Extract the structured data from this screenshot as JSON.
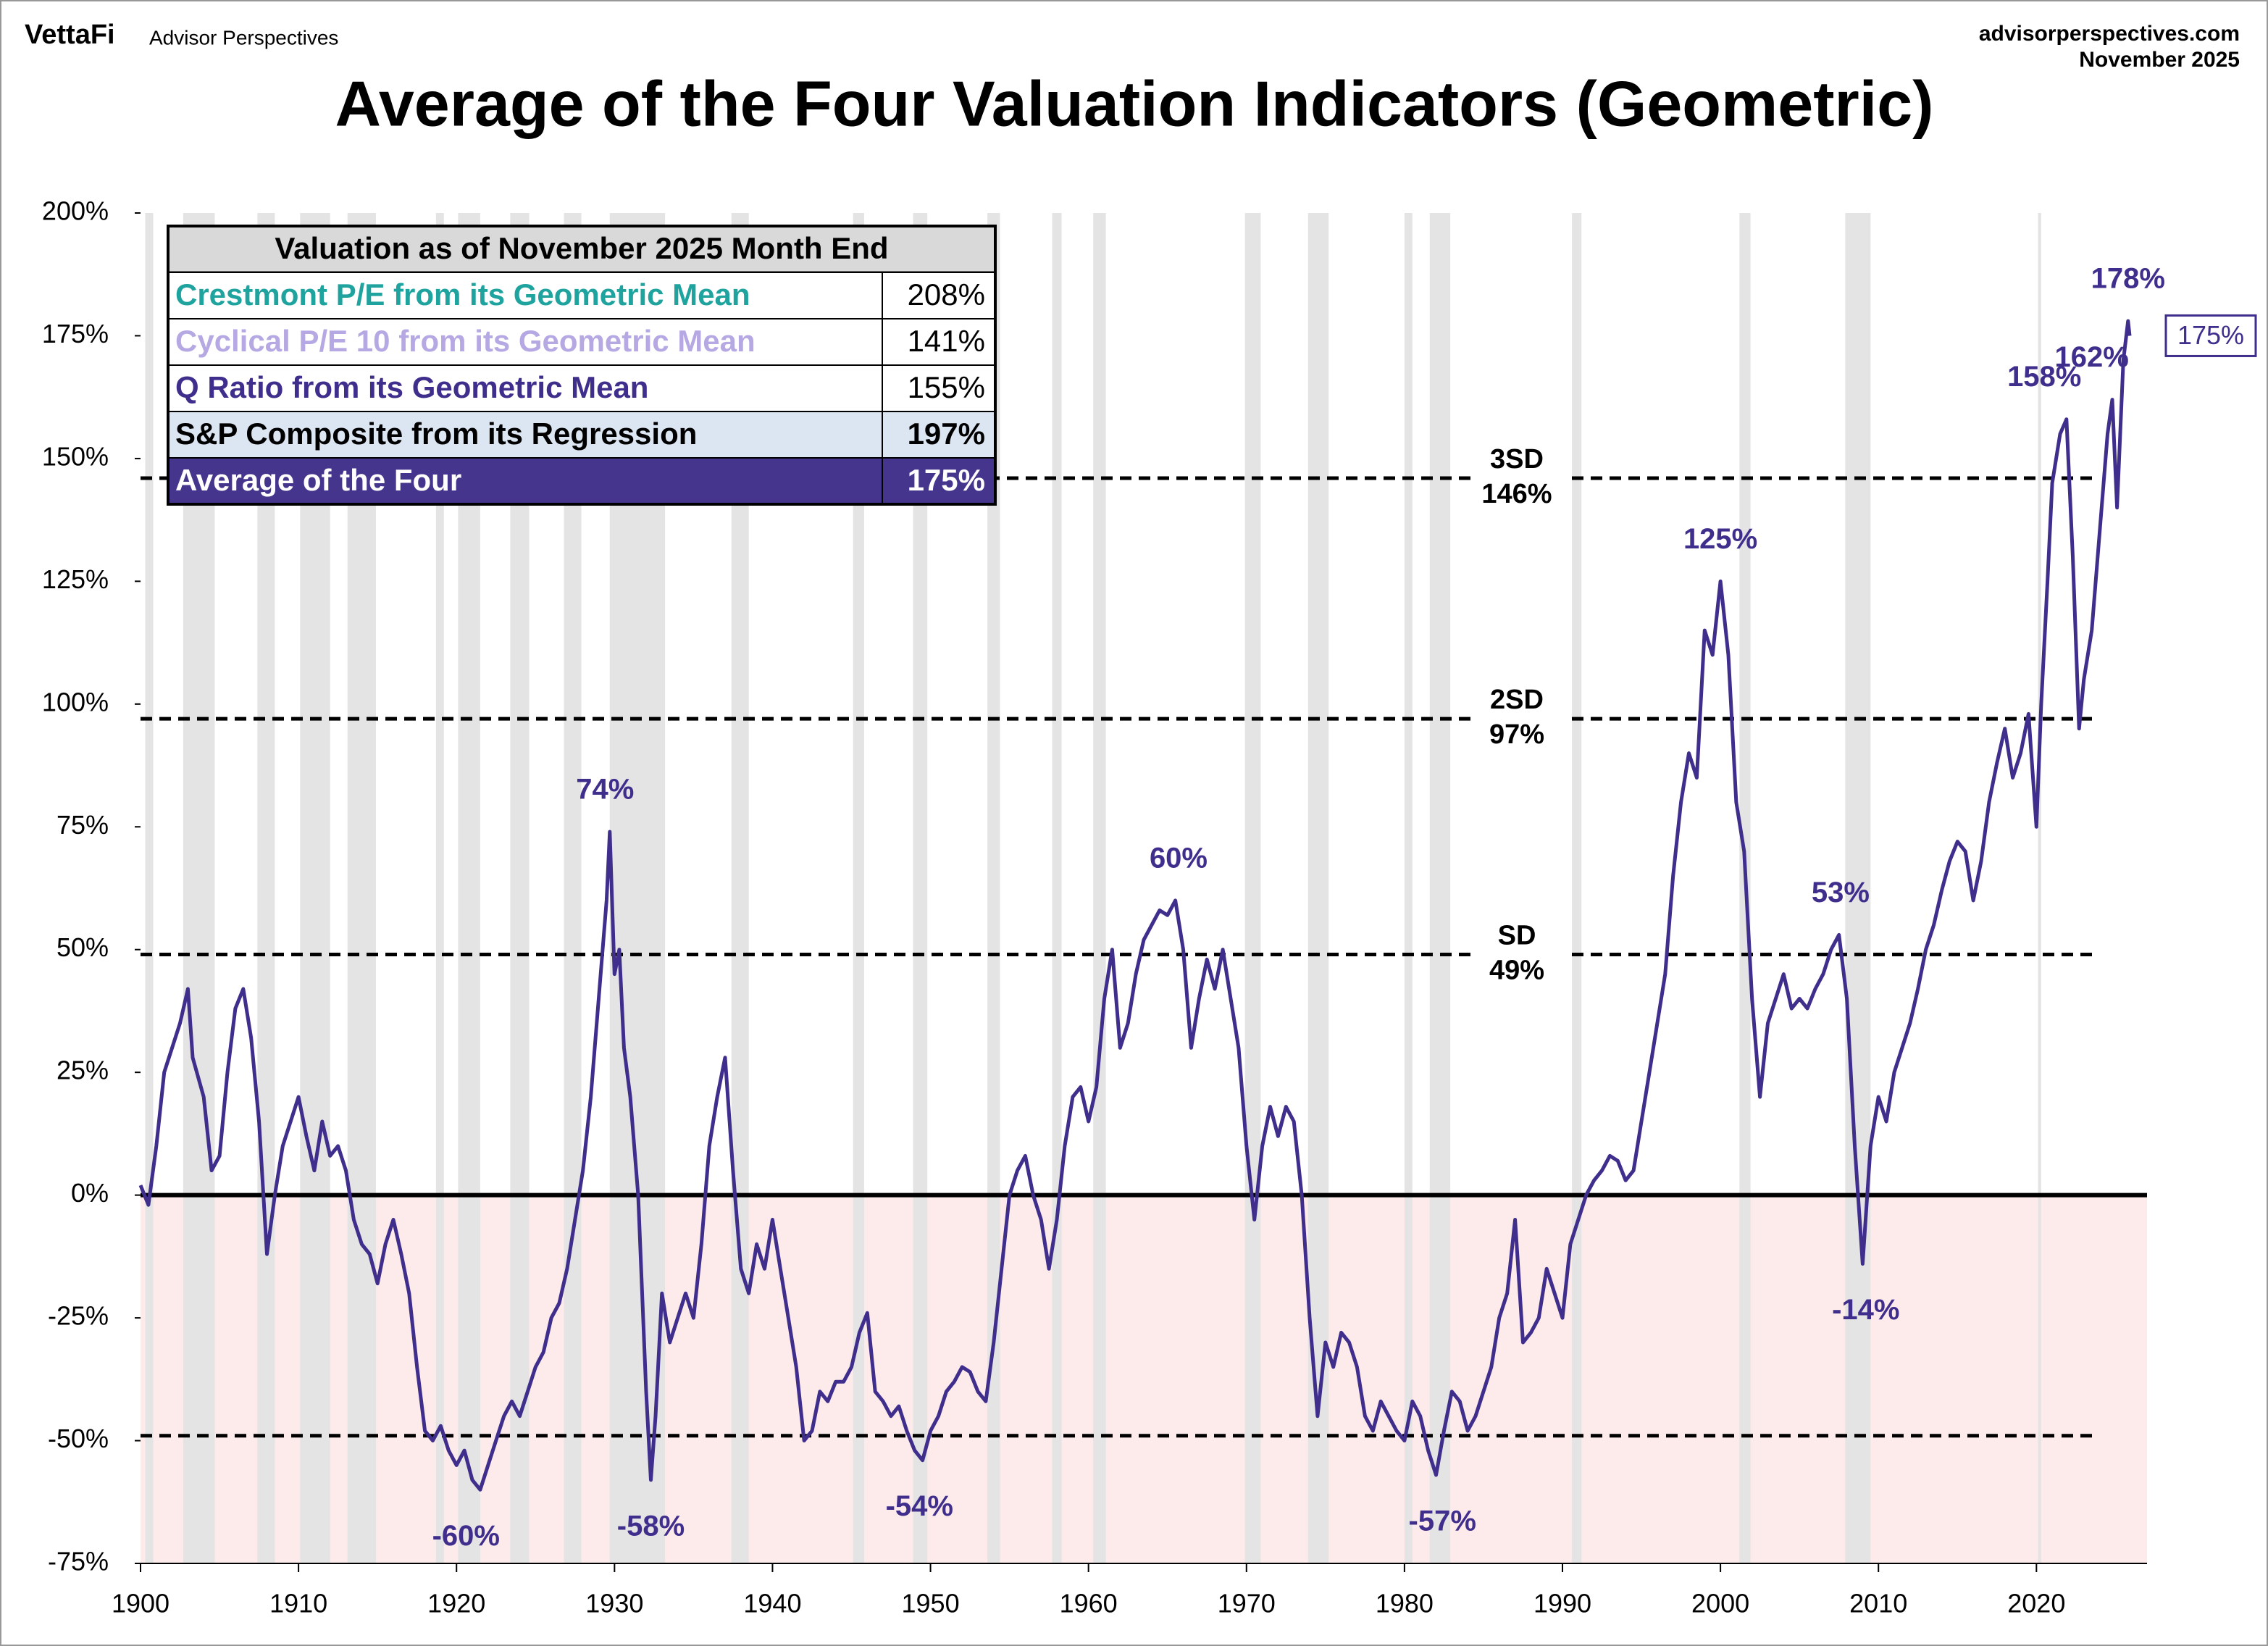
{
  "header": {
    "brand": "VettaFi",
    "subbrand": "Advisor Perspectives",
    "site": "advisorperspectives.com",
    "date": "November 2025"
  },
  "chart_data": {
    "type": "line",
    "title": "Average of the Four Valuation Indicators (Geometric)",
    "color": "#3f2e8c",
    "x": [
      1900.0,
      1900.5,
      1901,
      1901.5,
      1902,
      1902.5,
      1903,
      1903.3,
      1904,
      1904.5,
      1905,
      1905.5,
      1906,
      1906.5,
      1907,
      1907.5,
      1908,
      1908.5,
      1909,
      1909.5,
      1910,
      1910.5,
      1911,
      1911.5,
      1912,
      1912.5,
      1913,
      1913.5,
      1914,
      1914.5,
      1915,
      1915.5,
      1916,
      1916.5,
      1917,
      1917.5,
      1918,
      1918.5,
      1919,
      1919.5,
      1920,
      1920.5,
      1921,
      1921.5,
      1922,
      1922.5,
      1923,
      1923.5,
      1924,
      1924.5,
      1925,
      1925.5,
      1926,
      1926.5,
      1927,
      1927.5,
      1928,
      1928.5,
      1929,
      1929.5,
      1929.7,
      1930,
      1930.3,
      1930.6,
      1931,
      1931.5,
      1932,
      1932.3,
      1932.6,
      1933,
      1933.5,
      1934,
      1934.5,
      1935,
      1935.5,
      1936,
      1936.5,
      1937,
      1937.5,
      1938,
      1938.5,
      1939,
      1939.5,
      1940,
      1940.5,
      1941,
      1941.5,
      1942,
      1942.5,
      1943,
      1943.5,
      1944,
      1944.5,
      1945,
      1945.5,
      1946,
      1946.5,
      1947,
      1947.5,
      1948,
      1948.5,
      1949,
      1949.5,
      1950,
      1950.5,
      1951,
      1951.5,
      1952,
      1952.5,
      1953,
      1953.5,
      1954,
      1954.5,
      1955,
      1955.5,
      1956,
      1956.5,
      1957,
      1957.5,
      1958,
      1958.5,
      1959,
      1959.5,
      1960,
      1960.5,
      1961,
      1961.5,
      1962,
      1962.5,
      1963,
      1963.5,
      1964,
      1964.5,
      1965,
      1965.5,
      1966,
      1966.5,
      1967,
      1967.5,
      1968,
      1968.5,
      1969,
      1969.5,
      1970,
      1970.5,
      1971,
      1971.5,
      1972,
      1972.5,
      1973,
      1973.5,
      1974,
      1974.5,
      1975,
      1975.5,
      1976,
      1976.5,
      1977,
      1977.5,
      1978,
      1978.5,
      1979,
      1979.5,
      1980,
      1980.5,
      1981,
      1981.5,
      1982,
      1982.5,
      1983,
      1983.5,
      1984,
      1984.5,
      1985,
      1985.5,
      1986,
      1986.5,
      1987,
      1987.5,
      1988,
      1988.5,
      1989,
      1989.5,
      1990,
      1990.5,
      1991,
      1991.5,
      1992,
      1992.5,
      1993,
      1993.5,
      1994,
      1994.5,
      1995,
      1995.5,
      1996,
      1996.5,
      1997,
      1997.5,
      1998,
      1998.5,
      1999,
      1999.5,
      2000,
      2000.5,
      2001,
      2001.5,
      2002,
      2002.5,
      2003,
      2003.5,
      2004,
      2004.5,
      2005,
      2005.5,
      2006,
      2006.5,
      2007,
      2007.5,
      2008,
      2008.5,
      2009,
      2009.5,
      2010,
      2010.5,
      2011,
      2011.5,
      2012,
      2012.5,
      2013,
      2013.5,
      2014,
      2014.5,
      2015,
      2015.5,
      2016,
      2016.5,
      2017,
      2017.5,
      2018,
      2018.5,
      2019,
      2019.5,
      2020,
      2020.3,
      2020.7,
      2021,
      2021.5,
      2021.9,
      2022.3,
      2022.7,
      2023,
      2023.5,
      2024,
      2024.5,
      2024.8,
      2025.1,
      2025.5,
      2025.8,
      2025.9
    ],
    "values": [
      2,
      -2,
      10,
      25,
      30,
      35,
      42,
      28,
      20,
      5,
      8,
      25,
      38,
      42,
      32,
      15,
      -12,
      0,
      10,
      15,
      20,
      12,
      5,
      15,
      8,
      10,
      5,
      -5,
      -10,
      -12,
      -18,
      -10,
      -5,
      -12,
      -20,
      -35,
      -48,
      -50,
      -47,
      -52,
      -55,
      -52,
      -58,
      -60,
      -55,
      -50,
      -45,
      -42,
      -45,
      -40,
      -35,
      -32,
      -25,
      -22,
      -15,
      -5,
      5,
      20,
      40,
      60,
      74,
      45,
      50,
      30,
      20,
      0,
      -40,
      -58,
      -45,
      -20,
      -30,
      -25,
      -20,
      -25,
      -10,
      10,
      20,
      28,
      5,
      -15,
      -20,
      -10,
      -15,
      -5,
      -15,
      -25,
      -35,
      -50,
      -48,
      -40,
      -42,
      -38,
      -38,
      -35,
      -28,
      -24,
      -40,
      -42,
      -45,
      -43,
      -48,
      -52,
      -54,
      -48,
      -45,
      -40,
      -38,
      -35,
      -36,
      -40,
      -42,
      -30,
      -15,
      0,
      5,
      8,
      0,
      -5,
      -15,
      -5,
      10,
      20,
      22,
      15,
      22,
      40,
      50,
      30,
      35,
      45,
      52,
      55,
      58,
      57,
      60,
      50,
      30,
      40,
      48,
      42,
      50,
      40,
      30,
      10,
      -5,
      10,
      18,
      12,
      18,
      15,
      0,
      -25,
      -45,
      -30,
      -35,
      -28,
      -30,
      -35,
      -45,
      -48,
      -42,
      -45,
      -48,
      -50,
      -42,
      -45,
      -52,
      -57,
      -48,
      -40,
      -42,
      -48,
      -45,
      -40,
      -35,
      -25,
      -20,
      -5,
      -30,
      -28,
      -25,
      -15,
      -20,
      -25,
      -10,
      -5,
      0,
      3,
      5,
      8,
      7,
      3,
      5,
      15,
      25,
      35,
      45,
      65,
      80,
      90,
      85,
      115,
      110,
      125,
      110,
      80,
      70,
      40,
      20,
      35,
      40,
      45,
      38,
      40,
      38,
      42,
      45,
      50,
      53,
      40,
      10,
      -14,
      10,
      20,
      15,
      25,
      30,
      35,
      42,
      50,
      55,
      62,
      68,
      72,
      70,
      60,
      68,
      80,
      88,
      95,
      85,
      90,
      98,
      75,
      100,
      125,
      145,
      155,
      158,
      130,
      95,
      105,
      115,
      135,
      155,
      162,
      140,
      170,
      178,
      175
    ],
    "xlim": [
      1900,
      2027
    ],
    "xticks": [
      1900,
      1910,
      1920,
      1930,
      1940,
      1950,
      1960,
      1970,
      1980,
      1990,
      2000,
      2010,
      2020
    ],
    "ylim": [
      -75,
      200
    ],
    "yticks": [
      {
        "value": -75,
        "label": "-75%"
      },
      {
        "value": -50,
        "label": "-50%"
      },
      {
        "value": -25,
        "label": "-25%"
      },
      {
        "value": 0,
        "label": "0%"
      },
      {
        "value": 25,
        "label": "25%"
      },
      {
        "value": 50,
        "label": "50%"
      },
      {
        "value": 75,
        "label": "75%"
      },
      {
        "value": 100,
        "label": "100%"
      },
      {
        "value": 125,
        "label": "125%"
      },
      {
        "value": 150,
        "label": "150%"
      },
      {
        "value": 175,
        "label": "175%"
      },
      {
        "value": 200,
        "label": "200%"
      }
    ],
    "recession_bands": [
      [
        1900.3,
        1900.8
      ],
      [
        1902.7,
        1904.7
      ],
      [
        1907.4,
        1908.5
      ],
      [
        1910.1,
        1912.0
      ],
      [
        1913.1,
        1914.9
      ],
      [
        1918.7,
        1919.2
      ],
      [
        1920.1,
        1921.5
      ],
      [
        1923.4,
        1924.6
      ],
      [
        1926.8,
        1927.9
      ],
      [
        1929.7,
        1933.2
      ],
      [
        1937.4,
        1938.5
      ],
      [
        1945.1,
        1945.8
      ],
      [
        1948.9,
        1949.8
      ],
      [
        1953.6,
        1954.4
      ],
      [
        1957.7,
        1958.3
      ],
      [
        1960.3,
        1961.1
      ],
      [
        1969.9,
        1970.9
      ],
      [
        1973.9,
        1975.2
      ],
      [
        1980.0,
        1980.5
      ],
      [
        1981.6,
        1982.9
      ],
      [
        1990.6,
        1991.2
      ],
      [
        2001.2,
        2001.9
      ],
      [
        2007.9,
        2009.5
      ],
      [
        2020.1,
        2020.3
      ]
    ],
    "band_color": "#e4e4e4",
    "negative_fill": "#fdeaea",
    "reference_lines": [
      {
        "value": 146,
        "label": "3SD",
        "value_label": "146%"
      },
      {
        "value": 97,
        "label": "2SD",
        "value_label": "97%"
      },
      {
        "value": 49,
        "label": "SD",
        "value_label": "49%"
      },
      {
        "value": -49
      }
    ],
    "annotations": [
      {
        "x": 1929.4,
        "value": 74,
        "label": "74%"
      },
      {
        "x": 1965.7,
        "value": 60,
        "label": "60%"
      },
      {
        "x": 2000,
        "value": 125,
        "label": "125%"
      },
      {
        "x": 2007.6,
        "value": 53,
        "label": "53%"
      },
      {
        "x": 2020.5,
        "value": 158,
        "label": "158%"
      },
      {
        "x": 2023.5,
        "value": 162,
        "label": "162%"
      },
      {
        "x": 2025.8,
        "value": 178,
        "label": "178%"
      },
      {
        "x": 1920.6,
        "value": -60,
        "label": "-60%"
      },
      {
        "x": 1932.3,
        "value": -58,
        "label": "-58%"
      },
      {
        "x": 1949.3,
        "value": -54,
        "label": "-54%"
      },
      {
        "x": 1982.4,
        "value": -57,
        "label": "-57%"
      },
      {
        "x": 2009.2,
        "value": -14,
        "label": "-14%"
      }
    ],
    "end_label": {
      "value": 175,
      "label": "175%"
    },
    "table": {
      "title": "Valuation as of November 2025 Month End",
      "rows": [
        {
          "label": "Crestmont P/E from its Geometric Mean",
          "value": "208%",
          "color": "#1fa39e",
          "background": "#ffffff"
        },
        {
          "label": "Cyclical P/E 10 from its Geometric Mean",
          "value": "141%",
          "color": "#b6a9e3",
          "background": "#ffffff"
        },
        {
          "label": "Q Ratio from its Geometric Mean",
          "value": "155%",
          "color": "#3f2e8c",
          "background": "#ffffff"
        },
        {
          "label": "S&P Composite from its Regression",
          "value": "197%",
          "color": "#000000",
          "background": "#dce6f2"
        },
        {
          "label": "Average of the Four",
          "value": "175%",
          "color": "#ffffff",
          "background": "#46358c"
        }
      ]
    }
  }
}
